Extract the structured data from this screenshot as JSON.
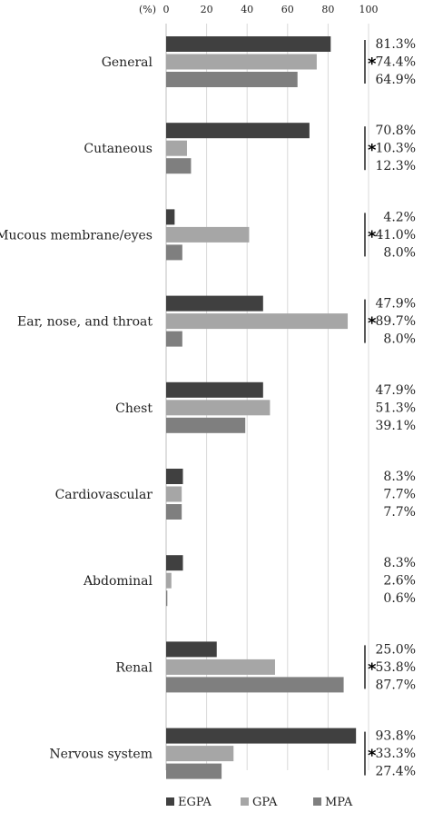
{
  "chart_data": {
    "type": "bar",
    "orientation": "horizontal",
    "unit_label": "(%)",
    "xlim": [
      0,
      100
    ],
    "x_ticks": [
      "0",
      "20",
      "40",
      "60",
      "80",
      "100"
    ],
    "grid": true,
    "legend_position": "bottom",
    "categories": [
      "General",
      "Cutaneous",
      "Mucous membrane/eyes",
      "Ear, nose, and throat",
      "Chest",
      "Cardiovascular",
      "Abdominal",
      "Renal",
      "Nervous system"
    ],
    "series": [
      {
        "name": "EGPA",
        "color": "#404040",
        "values": [
          81.3,
          70.8,
          4.2,
          47.9,
          47.9,
          8.3,
          8.3,
          25.0,
          93.8
        ]
      },
      {
        "name": "GPA",
        "color": "#a6a6a6",
        "values": [
          74.4,
          10.3,
          41.0,
          89.7,
          51.3,
          7.7,
          2.6,
          53.8,
          33.3
        ]
      },
      {
        "name": "MPA",
        "color": "#7f7f7f",
        "values": [
          64.9,
          12.3,
          8.0,
          8.0,
          39.1,
          7.7,
          0.6,
          87.7,
          27.4
        ]
      }
    ],
    "value_labels": [
      [
        "81.3%",
        "74.4%",
        "64.9%"
      ],
      [
        "70.8%",
        "10.3%",
        "12.3%"
      ],
      [
        "4.2%",
        "41.0%",
        "8.0%"
      ],
      [
        "47.9%",
        "89.7%",
        "8.0%"
      ],
      [
        "47.9%",
        "51.3%",
        "39.1%"
      ],
      [
        "8.3%",
        "7.7%",
        "7.7%"
      ],
      [
        "8.3%",
        "2.6%",
        "0.6%"
      ],
      [
        "25.0%",
        "53.8%",
        "87.7%"
      ],
      [
        "93.8%",
        "33.3%",
        "27.4%"
      ]
    ],
    "significance": [
      true,
      true,
      true,
      true,
      false,
      false,
      false,
      true,
      true
    ],
    "significance_marker": "*"
  }
}
